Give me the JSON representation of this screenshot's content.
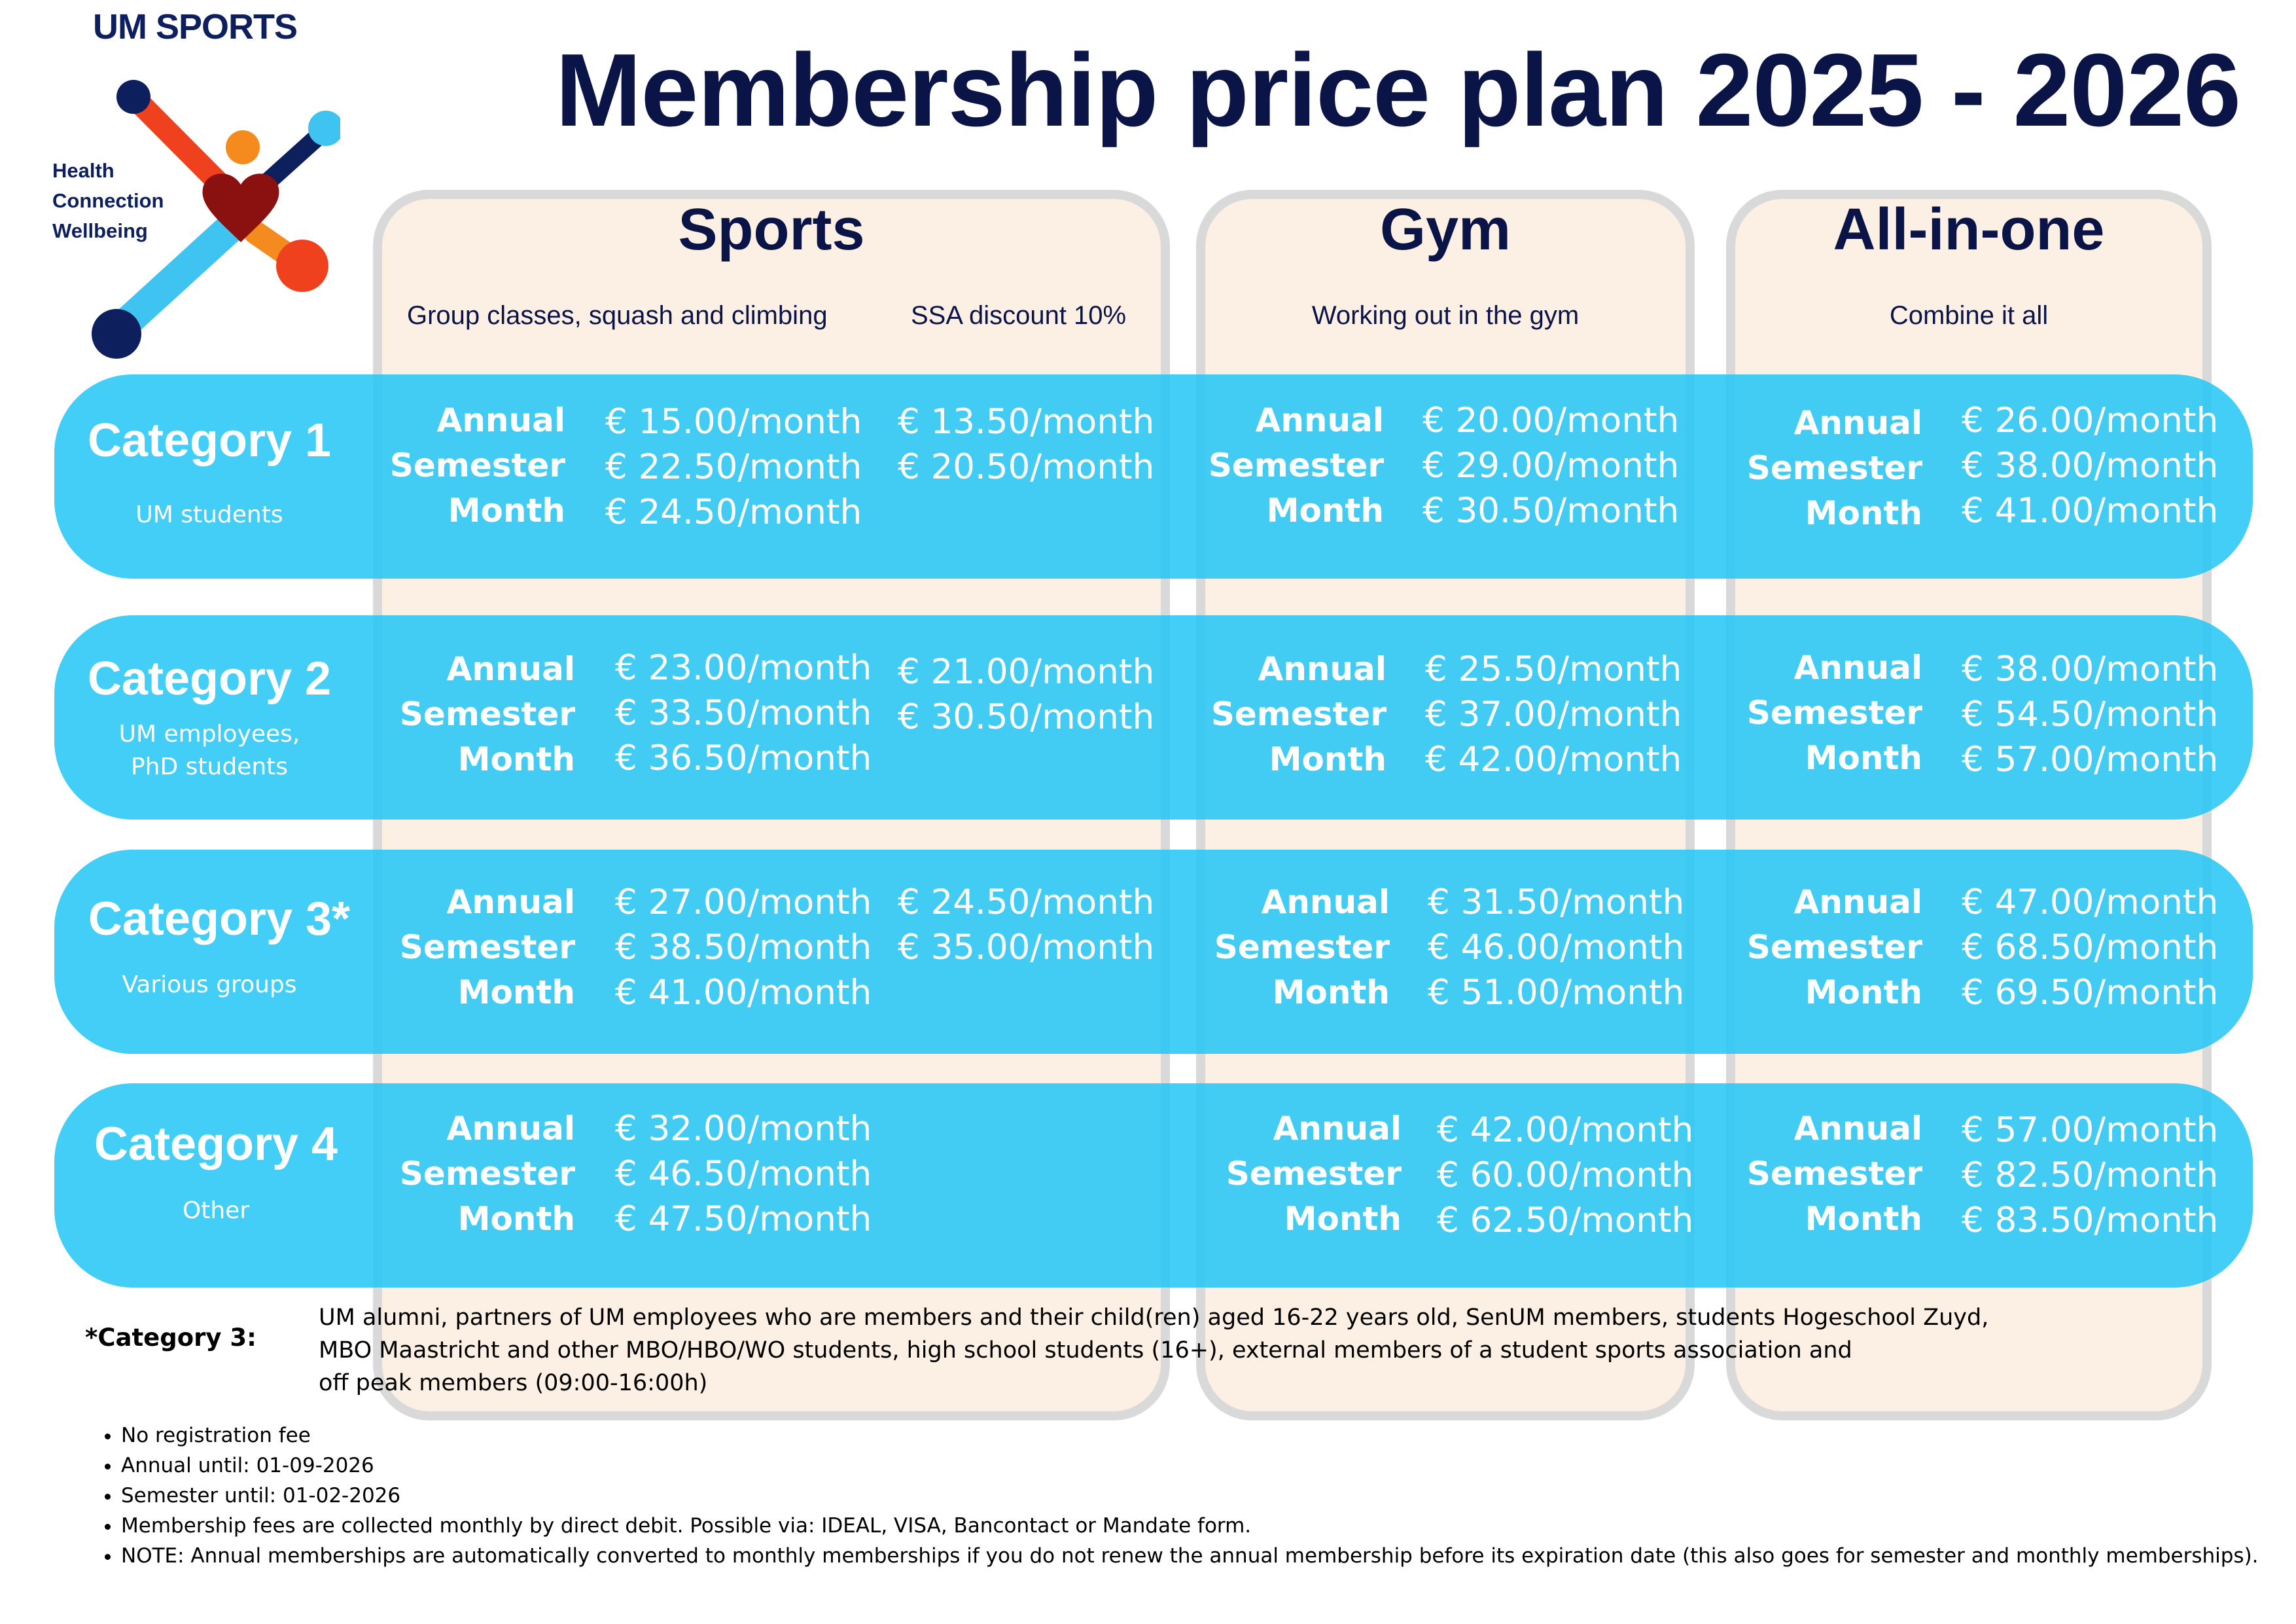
{
  "logo": {
    "brand": "UM SPORTS",
    "tagline": [
      "Health",
      "Connection",
      "Wellbeing"
    ],
    "colors": {
      "navy": "#0d1f5c",
      "red": "#f0411e",
      "orange": "#f58a1f",
      "cyan": "#3fc4f2",
      "heart": "#8b1111"
    }
  },
  "title": "Membership price plan 2025 - 2026",
  "columns": {
    "sports": {
      "title": "Sports",
      "subtitle": "Group classes, squash and climbing",
      "discount_label": "SSA discount 10%"
    },
    "gym": {
      "title": "Gym",
      "subtitle": "Working out in the gym"
    },
    "allinone": {
      "title": "All-in-one",
      "subtitle": "Combine it all"
    }
  },
  "terms": [
    "Annual",
    "Semester",
    "Month"
  ],
  "categories": [
    {
      "name": "Category 1",
      "description": [
        "UM students"
      ],
      "sports": [
        "€ 15.00/month",
        "€ 22.50/month",
        "€ 24.50/month"
      ],
      "sports_ssa": [
        "€ 13.50/month",
        "€ 20.50/month"
      ],
      "gym": [
        "€ 20.00/month",
        "€ 29.00/month",
        "€ 30.50/month"
      ],
      "allinone": [
        "€ 26.00/month",
        "€ 38.00/month",
        "€ 41.00/month"
      ]
    },
    {
      "name": "Category 2",
      "description": [
        "UM employees,",
        "PhD students"
      ],
      "sports": [
        "€ 23.00/month",
        "€ 33.50/month",
        "€ 36.50/month"
      ],
      "sports_ssa": [
        "€ 21.00/month",
        "€ 30.50/month"
      ],
      "gym": [
        "€ 25.50/month",
        "€ 37.00/month",
        "€ 42.00/month"
      ],
      "allinone": [
        "€ 38.00/month",
        "€ 54.50/month",
        "€ 57.00/month"
      ]
    },
    {
      "name": "Category 3*",
      "description": [
        "Various groups"
      ],
      "sports": [
        "€ 27.00/month",
        "€ 38.50/month",
        "€ 41.00/month"
      ],
      "sports_ssa": [
        "€ 24.50/month",
        "€ 35.00/month"
      ],
      "gym": [
        "€ 31.50/month",
        "€ 46.00/month",
        "€ 51.00/month"
      ],
      "allinone": [
        "€ 47.00/month",
        "€ 68.50/month",
        "€ 69.50/month"
      ]
    },
    {
      "name": "Category 4",
      "description": [
        "Other"
      ],
      "sports": [
        "€ 32.00/month",
        "€ 46.50/month",
        "€ 47.50/month"
      ],
      "sports_ssa": [],
      "gym": [
        "€ 42.00/month",
        "€ 60.00/month",
        "€ 62.50/month"
      ],
      "allinone": [
        "€ 57.00/month",
        "€ 82.50/month",
        "€ 83.50/month"
      ]
    }
  ],
  "footnote": {
    "label": "*Category 3:",
    "lines": [
      "UM alumni, partners of UM employees who are members and their child(ren) aged 16-22 years old, SenUM members, students Hogeschool Zuyd,",
      "MBO Maastricht and other MBO/HBO/WO students, high school students (16+), external members of a student sports association and",
      "off peak members (09:00-16:00h)"
    ]
  },
  "notes": [
    "No registration fee",
    "Annual until: 01-09-2026",
    "Semester until: 01-02-2026",
    "Membership fees are collected monthly by direct debit. Possible via: IDEAL, VISA, Bancontact or Mandate form.",
    "NOTE: Annual memberships are automatically converted to monthly memberships if you do not renew the annual membership before its expiration date (this also goes for semester and monthly memberships)."
  ],
  "theme": {
    "band": "#24c6f6",
    "card": "#fcefe3",
    "card_border": "#d9d9d9",
    "title": "#0b1446"
  }
}
